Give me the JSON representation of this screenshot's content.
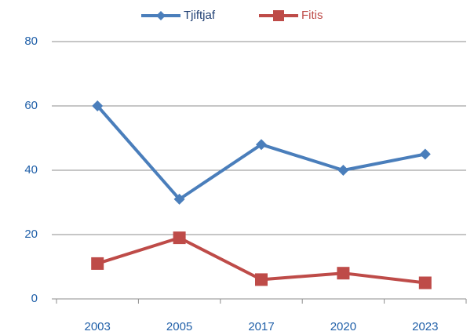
{
  "chart_data": {
    "type": "line",
    "categories": [
      "2003",
      "2005",
      "2017",
      "2020",
      "2023"
    ],
    "series": [
      {
        "name": "Tjiftjaf",
        "color": "#4a7ebb",
        "marker": "diamond",
        "values": [
          60,
          31,
          48,
          40,
          45
        ]
      },
      {
        "name": "Fitis",
        "color": "#be4b48",
        "marker": "square",
        "values": [
          11,
          19,
          6,
          8,
          5
        ]
      }
    ],
    "ylim": [
      0,
      80
    ],
    "yticks": [
      0,
      20,
      40,
      60,
      80
    ],
    "grid": true,
    "legend": "top"
  }
}
